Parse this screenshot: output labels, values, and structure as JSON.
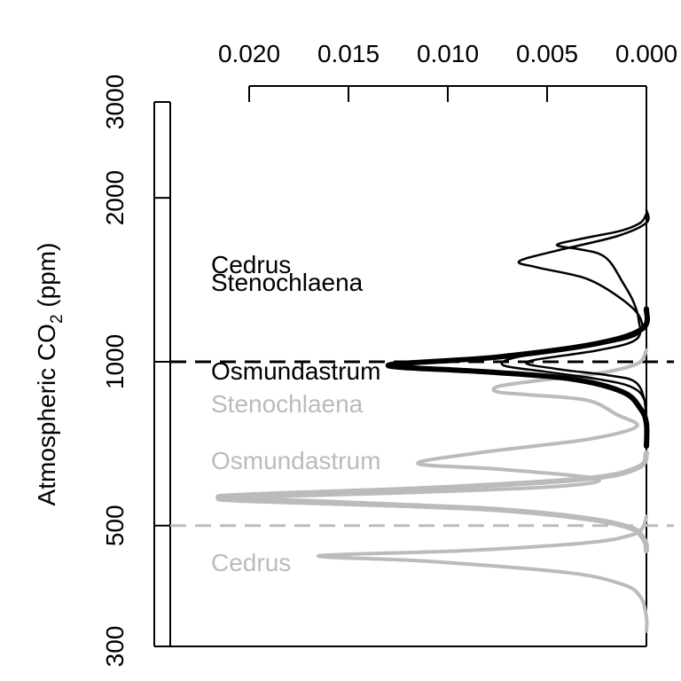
{
  "chart_data": {
    "type": "line",
    "title": "",
    "orientation": "density on horizontal axis (reversed, on top), CO2 on vertical axis (log scale, on left)",
    "xlabel": "",
    "ylabel": "Atmospheric CO2 (ppm)",
    "ylabel_parts": {
      "base": "Atmospheric CO",
      "sub": "2",
      "tail": " (ppm)"
    },
    "x_axis": {
      "position": "top",
      "reversed": true,
      "range": [
        0.024,
        0.0
      ],
      "ticks": [
        0.02,
        0.015,
        0.01,
        0.005,
        0.0
      ],
      "tick_labels": [
        "0.020",
        "0.015",
        "0.010",
        "0.005",
        "0.000"
      ]
    },
    "y_axis": {
      "position": "left",
      "scale": "log",
      "range": [
        300,
        3000
      ],
      "ticks": [
        300,
        500,
        1000,
        2000,
        3000
      ],
      "tick_labels": [
        "300",
        "500",
        "1000",
        "2000",
        "3000"
      ]
    },
    "reference_lines": [
      {
        "name": "high-co2-reference",
        "co2": 1000,
        "color": "#000000",
        "style": "dashed"
      },
      {
        "name": "low-co2-reference",
        "co2": 500,
        "color": "#bbbbbb",
        "style": "dashed"
      }
    ],
    "series": [
      {
        "name": "Cedrus",
        "group": "high CO2",
        "color": "#000000",
        "width": 2.5,
        "points": [
          [
            1870,
            0.0
          ],
          [
            1800,
            0.0003
          ],
          [
            1740,
            0.0013
          ],
          [
            1690,
            0.003
          ],
          [
            1640,
            0.0045
          ],
          [
            1610,
            0.0034
          ],
          [
            1580,
            0.0024
          ],
          [
            1520,
            0.0018
          ],
          [
            1400,
            0.0012
          ],
          [
            1300,
            0.0007
          ],
          [
            1200,
            0.0004
          ],
          [
            1100,
            0.0005
          ],
          [
            1050,
            0.0024
          ],
          [
            1000,
            0.006
          ],
          [
            970,
            0.0045
          ],
          [
            945,
            0.002
          ],
          [
            920,
            0.0006
          ],
          [
            850,
            0.0001
          ],
          [
            750,
            0.0
          ]
        ]
      },
      {
        "name": "Stenochlaena",
        "group": "high CO2",
        "color": "#000000",
        "width": 2.5,
        "points": [
          [
            1900,
            0.0
          ],
          [
            1800,
            0.0
          ],
          [
            1700,
            0.0015
          ],
          [
            1600,
            0.0045
          ],
          [
            1530,
            0.0064
          ],
          [
            1490,
            0.0055
          ],
          [
            1420,
            0.003
          ],
          [
            1300,
            0.0012
          ],
          [
            1200,
            0.0003
          ],
          [
            1120,
            0.0005
          ],
          [
            1070,
            0.0028
          ],
          [
            1020,
            0.0065
          ],
          [
            985,
            0.0072
          ],
          [
            960,
            0.0052
          ],
          [
            930,
            0.0025
          ],
          [
            900,
            0.0008
          ],
          [
            850,
            0.0001
          ],
          [
            750,
            0.0
          ]
        ]
      },
      {
        "name": "Osmundastrum",
        "group": "high CO2",
        "color": "#000000",
        "width": 6,
        "points": [
          [
            1250,
            0.0
          ],
          [
            1150,
            0.0002
          ],
          [
            1080,
            0.0025
          ],
          [
            1020,
            0.0075
          ],
          [
            985,
            0.013
          ],
          [
            958,
            0.008
          ],
          [
            930,
            0.0038
          ],
          [
            880,
            0.0012
          ],
          [
            820,
            0.0003
          ],
          [
            770,
            0.0
          ],
          [
            700,
            0.0
          ]
        ]
      },
      {
        "name": "Stenochlaena",
        "group": "low CO2",
        "color": "#bbbbbb",
        "width": 4,
        "points": [
          [
            1050,
            0.0
          ],
          [
            1000,
            0.0003
          ],
          [
            970,
            0.0013
          ],
          [
            945,
            0.003
          ],
          [
            920,
            0.0058
          ],
          [
            900,
            0.0075
          ],
          [
            880,
            0.0075
          ],
          [
            870,
            0.006
          ],
          [
            850,
            0.003
          ],
          [
            800,
            0.0015
          ],
          [
            760,
            0.0005
          ],
          [
            720,
            0.003
          ],
          [
            680,
            0.0085
          ],
          [
            650,
            0.0115
          ],
          [
            635,
            0.0075
          ],
          [
            610,
            0.0025
          ],
          [
            590,
            0.0045
          ],
          [
            575,
            0.012
          ],
          [
            560,
            0.0215
          ],
          [
            548,
            0.016
          ],
          [
            538,
            0.009
          ],
          [
            520,
            0.004
          ],
          [
            500,
            0.001
          ],
          [
            480,
            0.0002
          ],
          [
            450,
            0.0
          ]
        ]
      },
      {
        "name": "Osmundastrum",
        "group": "low CO2",
        "color": "#bbbbbb",
        "width": 6,
        "points": [
          [
            680,
            0.0
          ],
          [
            640,
            0.0004
          ],
          [
            610,
            0.003
          ],
          [
            585,
            0.011
          ],
          [
            565,
            0.0215
          ],
          [
            550,
            0.015
          ],
          [
            535,
            0.0075
          ],
          [
            515,
            0.003
          ],
          [
            495,
            0.0008
          ],
          [
            470,
            0.0001
          ],
          [
            450,
            0.0
          ]
        ]
      },
      {
        "name": "Cedrus",
        "group": "low CO2",
        "color": "#bbbbbb",
        "width": 4,
        "points": [
          [
            520,
            0.0
          ],
          [
            495,
            0.0002
          ],
          [
            480,
            0.0008
          ],
          [
            465,
            0.003
          ],
          [
            450,
            0.009
          ],
          [
            440,
            0.0165
          ],
          [
            430,
            0.011
          ],
          [
            410,
            0.004
          ],
          [
            390,
            0.0012
          ],
          [
            370,
            0.0003
          ],
          [
            340,
            0.0
          ],
          [
            320,
            0.0
          ]
        ]
      }
    ],
    "annotations": [
      {
        "text": "Cedrus",
        "color": "#000000"
      },
      {
        "text": "Stenochlaena",
        "color": "#000000"
      },
      {
        "text": "Osmundastrum",
        "color": "#000000"
      },
      {
        "text": "Stenochlaena",
        "color": "#bbbbbb"
      },
      {
        "text": "Osmundastrum",
        "color": "#bbbbbb"
      },
      {
        "text": "Cedrus",
        "color": "#bbbbbb"
      }
    ],
    "grid": false,
    "legend": "none"
  }
}
